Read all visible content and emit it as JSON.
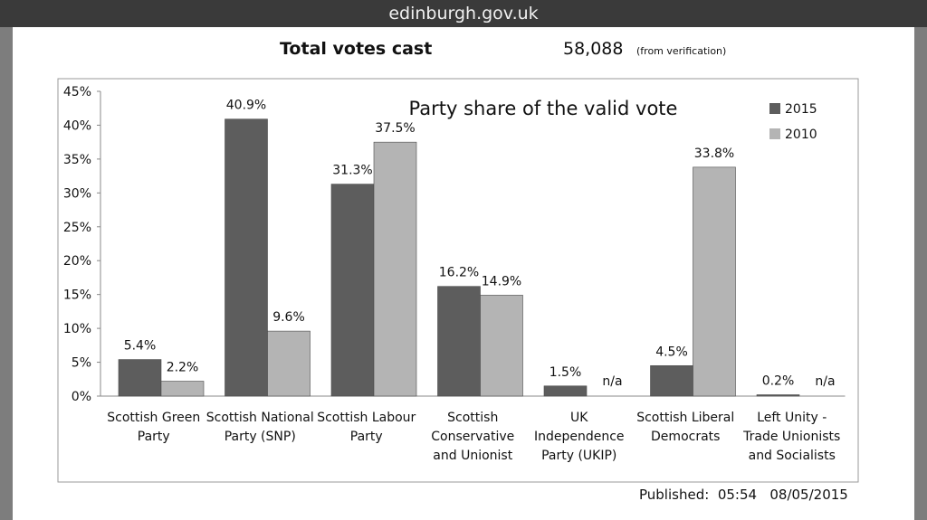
{
  "header": {
    "site": "edinburgh.gov.uk"
  },
  "totals": {
    "label": "Total votes cast",
    "value": "58,088",
    "note": "(from verification)"
  },
  "published": {
    "label": "Published:",
    "time": "05:54",
    "date": "08/05/2015"
  },
  "colors": {
    "s2015": "#5d5d5d",
    "s2010": "#b4b4b4"
  },
  "chart_data": {
    "type": "bar",
    "title": "Party share of the valid vote",
    "categories": [
      [
        "Scottish Green",
        "Party"
      ],
      [
        "Scottish National",
        "Party (SNP)"
      ],
      [
        "Scottish Labour",
        "Party"
      ],
      [
        "Scottish",
        "Conservative",
        "and Unionist"
      ],
      [
        "UK",
        "Independence",
        "Party (UKIP)"
      ],
      [
        "Scottish Liberal",
        "Democrats"
      ],
      [
        "Left Unity -",
        "Trade Unionists",
        "and Socialists"
      ]
    ],
    "series": [
      {
        "name": "2015",
        "values": [
          5.4,
          40.9,
          31.3,
          16.2,
          1.5,
          4.5,
          0.2
        ],
        "labels": [
          "5.4%",
          "40.9%",
          "31.3%",
          "16.2%",
          "1.5%",
          "4.5%",
          "0.2%"
        ]
      },
      {
        "name": "2010",
        "values": [
          2.2,
          9.6,
          37.5,
          14.9,
          null,
          33.8,
          null
        ],
        "labels": [
          "2.2%",
          "9.6%",
          "37.5%",
          "14.9%",
          "n/a",
          "33.8%",
          "n/a"
        ]
      }
    ],
    "ylim": [
      0,
      45
    ],
    "yticks": [
      0,
      5,
      10,
      15,
      20,
      25,
      30,
      35,
      40,
      45
    ],
    "ytick_labels": [
      "0%",
      "5%",
      "10%",
      "15%",
      "20%",
      "25%",
      "30%",
      "35%",
      "40%",
      "45%"
    ],
    "legend": "top-right",
    "xlabel": "",
    "ylabel": ""
  }
}
